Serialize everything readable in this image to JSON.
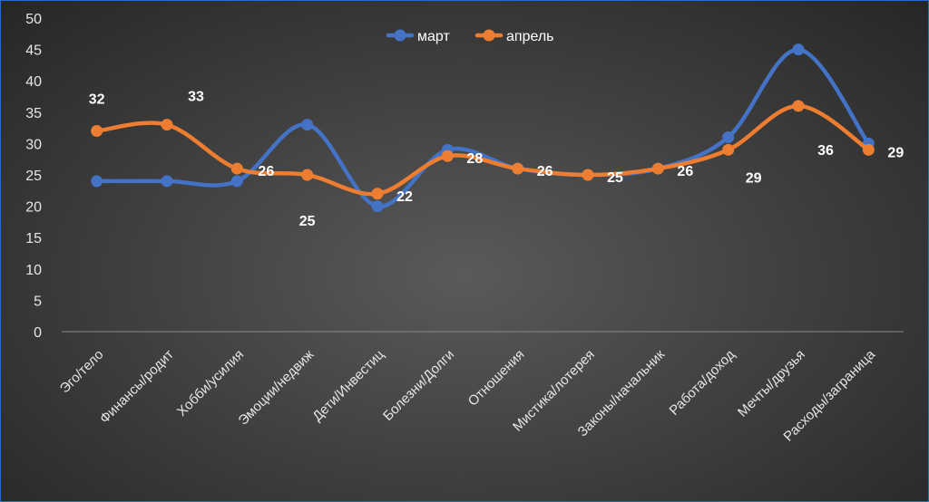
{
  "chart_data": {
    "type": "line",
    "title": "",
    "xlabel": "",
    "ylabel": "",
    "ylim": [
      0,
      50
    ],
    "y_ticks": [
      0,
      5,
      10,
      15,
      20,
      25,
      30,
      35,
      40,
      45,
      50
    ],
    "grid": false,
    "legend_position": "top-center",
    "categories": [
      "Эго/тело",
      "Финансы/родит",
      "Хобби/усилия",
      "Эмоции/недвиж",
      "Дети/Инвестиц",
      "Болезни/Долги",
      "Отношения",
      "Мистика/лотерея",
      "Законы/начальник",
      "Работа/доход",
      "Мечты/друзья",
      "Расходы/заграница"
    ],
    "series": [
      {
        "name": "март",
        "color": "#4472c4",
        "values": [
          24,
          24,
          24,
          33,
          20,
          29,
          26,
          25,
          26,
          31,
          45,
          30
        ]
      },
      {
        "name": "апрель",
        "color": "#ed7d31",
        "values": [
          32,
          33,
          26,
          25,
          22,
          28,
          26,
          25,
          26,
          29,
          36,
          29
        ],
        "data_labels": [
          "32",
          "33",
          "26",
          "25",
          "22",
          "28",
          "26",
          "25",
          "26",
          "29",
          "36",
          "29"
        ]
      }
    ]
  }
}
